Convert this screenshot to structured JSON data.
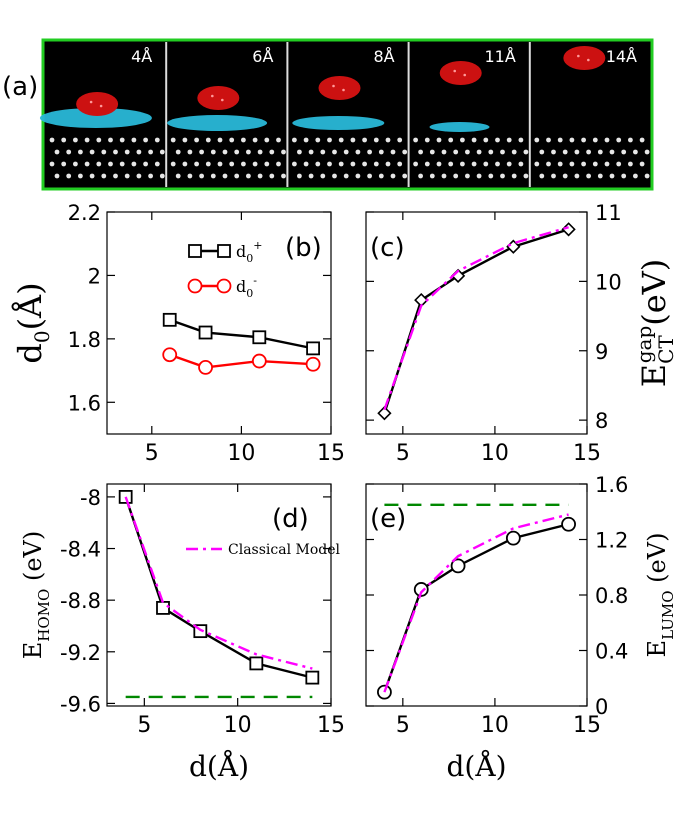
{
  "panel_a": {
    "label": "(a)",
    "separations": [
      "4Å",
      "6Å",
      "8Å",
      "11Å",
      "14Å"
    ]
  },
  "colors": {
    "frame_green": "#22cc22",
    "molecule_red": "#cc1111",
    "charge_cyan": "#29b8d8",
    "series_black": "#000000",
    "series_red": "#ff0000",
    "model_magenta": "#ff00ff",
    "reference_green": "#008800"
  },
  "chart_data": [
    {
      "id": "b",
      "type": "line",
      "panel_label": "(b)",
      "ylabel_main": "d",
      "ylabel_sub": "0",
      "ylabel_tail": "(Å)",
      "xlabel": "",
      "xlim": [
        2.5,
        15
      ],
      "ylim": [
        1.5,
        2.2
      ],
      "xticks": [
        "5",
        "10",
        "15"
      ],
      "xtick_values": [
        5,
        10,
        15
      ],
      "yticks": [
        "1.6",
        "1.8",
        "2",
        "2.2"
      ],
      "ytick_values": [
        1.6,
        1.8,
        2.0,
        2.2
      ],
      "series": [
        {
          "name": "d0+",
          "legend_main": "d",
          "legend_sub": "0",
          "legend_sup": "+",
          "marker": "square",
          "color": "#000000",
          "x": [
            6,
            8,
            11,
            14
          ],
          "y": [
            1.86,
            1.82,
            1.805,
            1.77
          ]
        },
        {
          "name": "d0-",
          "legend_main": "d",
          "legend_sub": "0",
          "legend_sup": "-",
          "marker": "circle",
          "color": "#ff0000",
          "x": [
            6,
            8,
            11,
            14
          ],
          "y": [
            1.75,
            1.71,
            1.73,
            1.72
          ]
        }
      ]
    },
    {
      "id": "c",
      "type": "line",
      "panel_label": "(c)",
      "ylabel_main": "E",
      "ylabel_sub": "CT",
      "ylabel_sup": "gap",
      "ylabel_tail": "(eV)",
      "xlabel": "",
      "xlim": [
        3,
        15
      ],
      "ylim": [
        7.8,
        11
      ],
      "xticks": [
        "5",
        "10",
        "15"
      ],
      "xtick_values": [
        5,
        10,
        15
      ],
      "yticks": [
        "8",
        "9",
        "10",
        "11"
      ],
      "ytick_values": [
        8,
        9,
        10,
        11
      ],
      "series": [
        {
          "marker": "diamond",
          "color": "#000000",
          "x": [
            4,
            6,
            8,
            11,
            14
          ],
          "y": [
            8.1,
            9.73,
            10.08,
            10.5,
            10.75
          ]
        },
        {
          "style": "dash-dot",
          "color": "#ff00ff",
          "x": [
            4,
            6,
            8,
            11,
            14
          ],
          "y": [
            8.15,
            9.65,
            10.15,
            10.55,
            10.78
          ]
        }
      ]
    },
    {
      "id": "d",
      "type": "line",
      "panel_label": "(d)",
      "ylabel_main": "E",
      "ylabel_sub": "HOMO",
      "ylabel_tail": " (eV)",
      "xlabel": "d(Å)",
      "xlim": [
        3,
        15
      ],
      "ylim": [
        -9.62,
        -7.9
      ],
      "xticks": [
        "5",
        "10",
        "15"
      ],
      "xtick_values": [
        5,
        10,
        15
      ],
      "yticks": [
        "-8",
        "-8.4",
        "-8.8",
        "-9.2",
        "-9.6"
      ],
      "ytick_values": [
        -8,
        -8.4,
        -8.8,
        -9.2,
        -9.6
      ],
      "legend_text": "Classical Model",
      "series": [
        {
          "marker": "square",
          "color": "#000000",
          "x": [
            4,
            6,
            8,
            11,
            14
          ],
          "y": [
            -8.0,
            -8.86,
            -9.04,
            -9.29,
            -9.4
          ]
        },
        {
          "name": "Classical Model",
          "style": "dash-dot",
          "color": "#ff00ff",
          "x": [
            4,
            6,
            8,
            11,
            14
          ],
          "y": [
            -8.0,
            -8.82,
            -9.03,
            -9.22,
            -9.33
          ]
        },
        {
          "style": "dashed",
          "color": "#008800",
          "x": [
            4,
            14
          ],
          "y": [
            -9.55,
            -9.55
          ]
        }
      ]
    },
    {
      "id": "e",
      "type": "line",
      "panel_label": "(e)",
      "ylabel_main": "E",
      "ylabel_sub": "LUMO",
      "ylabel_tail": " (eV)",
      "xlabel": "d(Å)",
      "xlim": [
        3,
        15
      ],
      "ylim": [
        0,
        1.6
      ],
      "xticks": [
        "5",
        "10",
        "15"
      ],
      "xtick_values": [
        5,
        10,
        15
      ],
      "yticks": [
        "0",
        "0.4",
        "0.8",
        "1.2",
        "1.6"
      ],
      "ytick_values": [
        0,
        0.4,
        0.8,
        1.2,
        1.6
      ],
      "series": [
        {
          "marker": "circle",
          "color": "#000000",
          "x": [
            4,
            6,
            8,
            11,
            14
          ],
          "y": [
            0.1,
            0.84,
            1.01,
            1.21,
            1.31
          ]
        },
        {
          "style": "dash-dot",
          "color": "#ff00ff",
          "x": [
            4,
            6,
            8,
            11,
            14
          ],
          "y": [
            0.1,
            0.82,
            1.08,
            1.28,
            1.38
          ]
        },
        {
          "style": "dashed",
          "color": "#008800",
          "x": [
            4,
            14
          ],
          "y": [
            1.45,
            1.45
          ]
        }
      ]
    }
  ]
}
